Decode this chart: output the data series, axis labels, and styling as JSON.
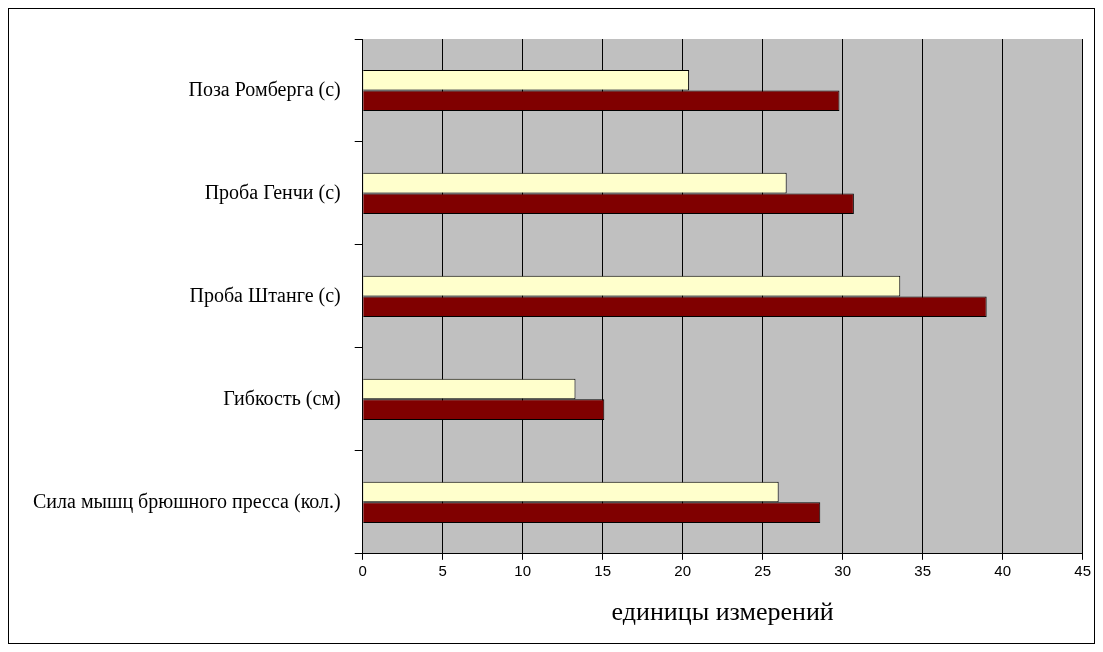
{
  "chart_data": {
    "type": "bar",
    "orientation": "horizontal",
    "xlabel": "единицы измерений",
    "categories": [
      "Поза Ромберга (с)",
      "Проба Генчи (с)",
      "Проба Штанге (с)",
      "Гибкость (см)",
      "Сила мышц брюшного пресса (кол.)"
    ],
    "series": [
      {
        "color": "#ffffcc",
        "values": [
          20.4,
          26.5,
          33.6,
          13.3,
          26.0
        ]
      },
      {
        "color": "#800000",
        "values": [
          29.8,
          30.7,
          39.0,
          15.1,
          28.6
        ]
      }
    ],
    "xlim": [
      0,
      45
    ],
    "xticks": [
      0,
      5,
      10,
      15,
      20,
      25,
      30,
      35,
      40,
      45
    ],
    "grid": "x",
    "legend": false
  }
}
